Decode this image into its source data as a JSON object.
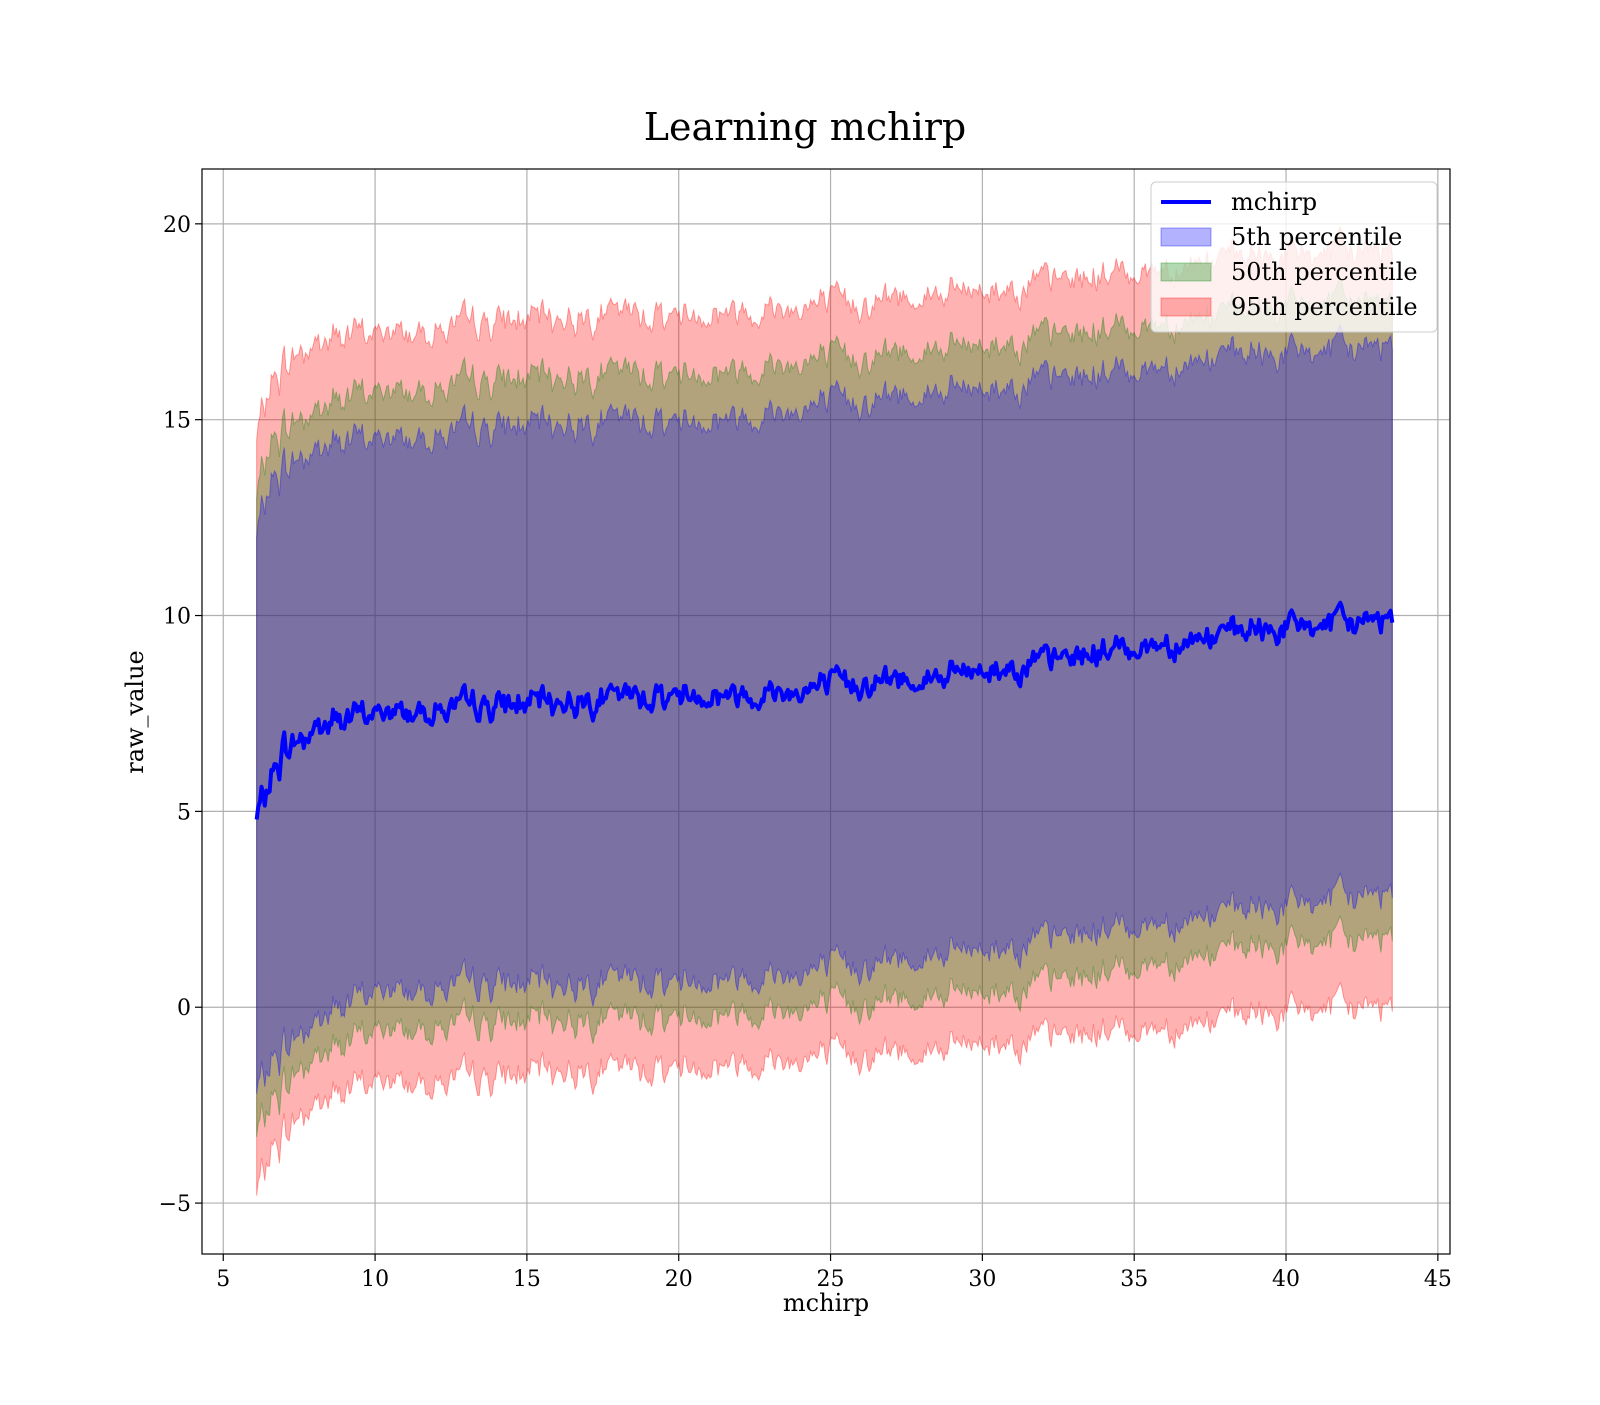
{
  "chart_data": {
    "type": "area",
    "title": "Learning mchirp",
    "xlabel": "mchirp",
    "ylabel": "raw_value",
    "xlim": [
      4.3,
      45.4
    ],
    "ylim": [
      -6.3,
      21.4
    ],
    "xticks": [
      5,
      10,
      15,
      20,
      25,
      30,
      35,
      40,
      45
    ],
    "yticks": [
      -5,
      0,
      5,
      10,
      15,
      20
    ],
    "ytick_labels": [
      "−5",
      "0",
      "5",
      "10",
      "15",
      "20"
    ],
    "grid": true,
    "legend_position": "top-right",
    "x_range": [
      6.1,
      43.5
    ],
    "anchors_x": [
      6.1,
      6.5,
      7,
      7.5,
      8,
      9,
      10,
      12,
      14,
      16,
      18,
      20,
      22,
      24,
      26,
      28,
      30,
      32,
      34,
      36,
      38,
      40,
      42,
      43.5
    ],
    "series": [
      {
        "name": "mchirp",
        "kind": "line",
        "color": "#0000ff",
        "y": [
          4.8,
          5.7,
          6.6,
          6.8,
          7.1,
          7.4,
          7.5,
          7.6,
          7.7,
          7.8,
          7.9,
          8.0,
          8.0,
          8.1,
          8.3,
          8.4,
          8.6,
          8.8,
          9.1,
          9.3,
          9.5,
          9.7,
          9.8,
          10.0
        ]
      },
      {
        "name": "5th percentile",
        "kind": "band",
        "color": "#0000ff",
        "upper": [
          12.0,
          13.3,
          13.8,
          14.0,
          14.2,
          14.5,
          14.5,
          14.6,
          14.8,
          14.9,
          15.0,
          15.0,
          15.1,
          15.3,
          15.5,
          15.7,
          15.8,
          16.0,
          16.2,
          16.4,
          16.6,
          16.7,
          16.8,
          17.0
        ],
        "lower": [
          -2.2,
          -1.5,
          -1.0,
          -0.7,
          -0.4,
          0.1,
          0.4,
          0.5,
          0.6,
          0.6,
          0.7,
          0.7,
          0.8,
          0.9,
          1.1,
          1.3,
          1.5,
          1.7,
          2.0,
          2.2,
          2.4,
          2.6,
          2.8,
          3.0
        ]
      },
      {
        "name": "50th percentile",
        "kind": "band",
        "color": "#008000",
        "upper": [
          13.0,
          14.3,
          14.8,
          15.0,
          15.2,
          15.6,
          15.7,
          15.8,
          16.0,
          16.1,
          16.2,
          16.2,
          16.3,
          16.5,
          16.6,
          16.8,
          16.9,
          17.1,
          17.3,
          17.5,
          17.7,
          17.9,
          18.0,
          18.1
        ],
        "lower": [
          -3.3,
          -2.5,
          -2.0,
          -1.6,
          -1.3,
          -0.9,
          -0.6,
          -0.5,
          -0.4,
          -0.3,
          -0.3,
          -0.2,
          -0.1,
          0.0,
          0.1,
          0.3,
          0.4,
          0.6,
          0.9,
          1.2,
          1.4,
          1.6,
          1.7,
          1.9
        ]
      },
      {
        "name": "95th percentile",
        "kind": "band",
        "color": "#ff0000",
        "upper": [
          14.5,
          15.8,
          16.4,
          16.7,
          16.9,
          17.2,
          17.2,
          17.3,
          17.5,
          17.6,
          17.7,
          17.7,
          17.8,
          17.9,
          18.0,
          18.2,
          18.3,
          18.5,
          18.7,
          18.9,
          19.1,
          19.2,
          19.3,
          19.4
        ],
        "lower": [
          -4.8,
          -3.8,
          -3.2,
          -2.8,
          -2.5,
          -2.1,
          -1.9,
          -1.9,
          -1.8,
          -1.6,
          -1.6,
          -1.5,
          -1.4,
          -1.3,
          -1.2,
          -1.1,
          -0.9,
          -0.8,
          -0.6,
          -0.5,
          -0.3,
          -0.1,
          0.0,
          0.1
        ]
      }
    ]
  }
}
